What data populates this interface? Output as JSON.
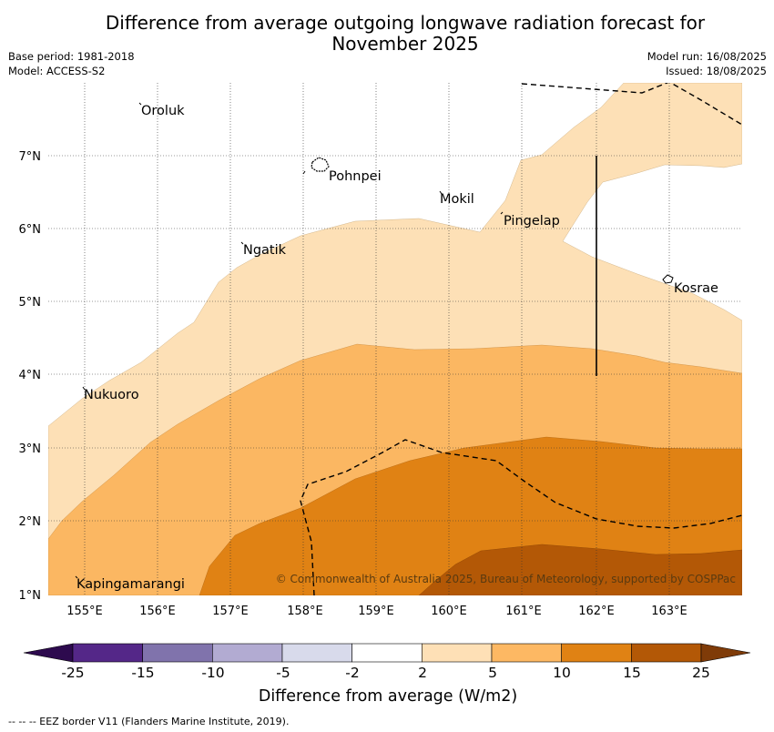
{
  "title_line1": "Difference from average outgoing longwave radiation forecast for",
  "title_line2": "November 2025",
  "base_period": "Base period: 1981-2018",
  "model": "Model: ACCESS-S2",
  "model_run": "Model run: 16/08/2025",
  "issued": "Issued: 18/08/2025",
  "lon_labels": [
    "155°E",
    "156°E",
    "157°E",
    "158°E",
    "159°E",
    "160°E",
    "161°E",
    "162°E",
    "163°E"
  ],
  "lat_labels": [
    "7°N",
    "6°N",
    "5°N",
    "4°N",
    "3°N",
    "2°N",
    "1°N"
  ],
  "places": {
    "oroluk": "Oroluk",
    "pohnpei": "Pohnpei",
    "mokil": "Mokil",
    "pingelap": "Pingelap",
    "ngatik": "Ngatik",
    "kosrae": "Kosrae",
    "nukuoro": "Nukuoro",
    "kapingamarangi": "Kapingamarangi"
  },
  "copyright": "© Commonwealth of Australia 2025, Bureau of Meteorology, supported by COSPPac",
  "colorbar": {
    "ticks": [
      "-25",
      "-15",
      "-10",
      "-5",
      "-2",
      "2",
      "5",
      "10",
      "15",
      "25"
    ],
    "colors": [
      "#2d0a4e",
      "#542788",
      "#8073ac",
      "#b2abd2",
      "#d8daeb",
      "#ffffff",
      "#fee0b6",
      "#fdb863",
      "#e08214",
      "#b35806",
      "#7f3b08"
    ],
    "title": "Difference from average (W/m2)"
  },
  "footer": "-- -- -- EEZ border V11 (Flanders Marine Institute, 2019)."
}
